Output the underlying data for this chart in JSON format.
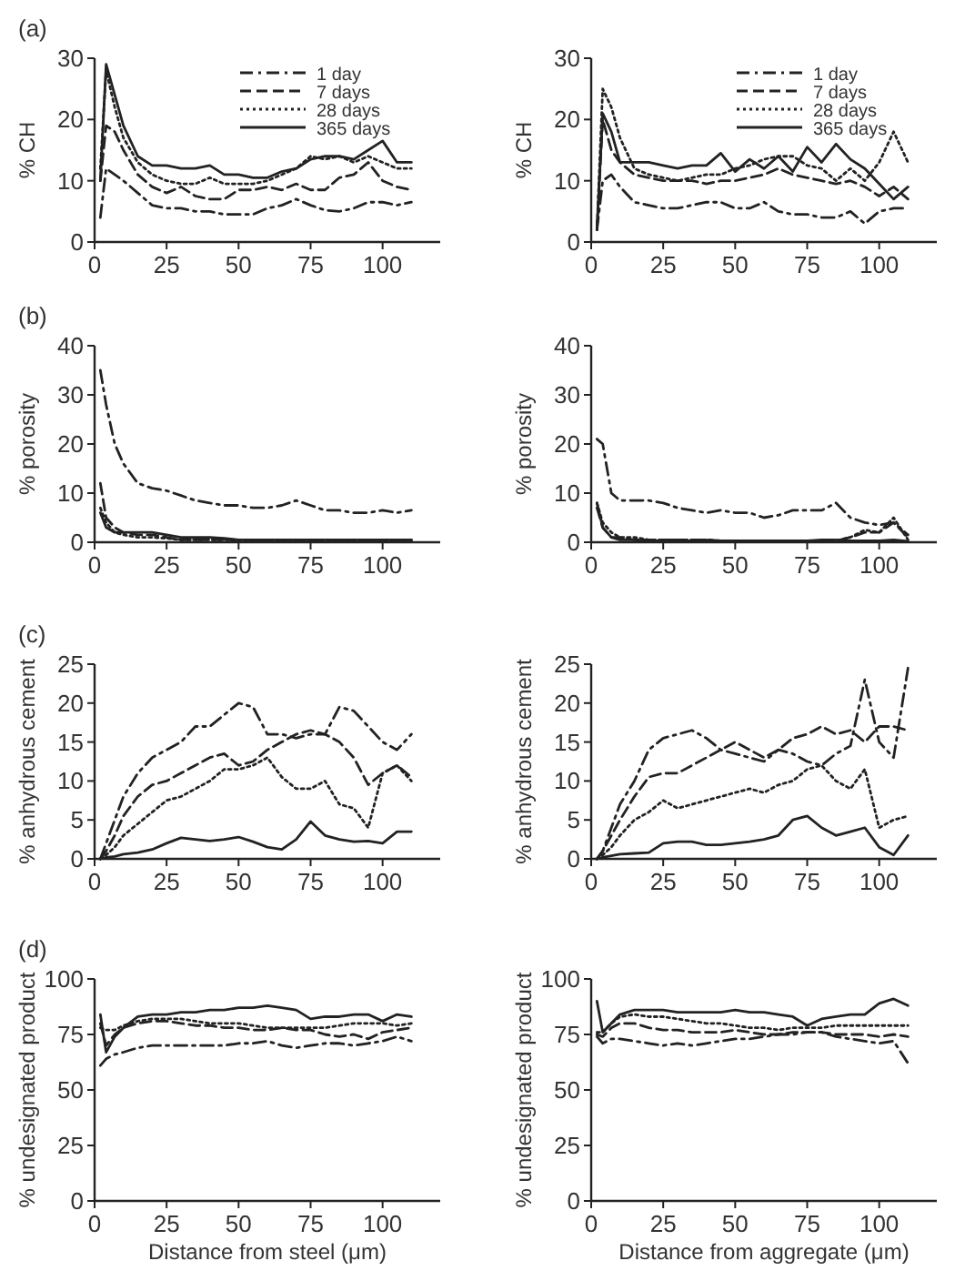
{
  "chart_data": [
    {
      "type": "line",
      "annotations": [
        "(a)"
      ],
      "ylabel": "% CH",
      "x": [
        2,
        4,
        7,
        10,
        15,
        20,
        25,
        30,
        35,
        40,
        45,
        50,
        55,
        60,
        65,
        70,
        75,
        80,
        85,
        90,
        95,
        100,
        105,
        110
      ],
      "xlim": [
        0,
        120
      ],
      "xticks": [
        0,
        25,
        50,
        75,
        100
      ],
      "ylim": [
        0,
        30
      ],
      "yticks": [
        0,
        10,
        20,
        30
      ],
      "legend": "top right",
      "series": [
        {
          "name": "1 day",
          "color": "#222222",
          "line_style": "dashdot",
          "values": [
            4,
            12,
            11,
            10,
            8,
            6,
            5.5,
            5.5,
            5,
            5,
            4.5,
            4.5,
            4.5,
            5.5,
            6,
            7,
            6,
            5.2,
            5,
            5.5,
            6.5,
            6.5,
            6,
            6.5
          ]
        },
        {
          "name": "7 days",
          "color": "#222222",
          "line_style": "dashed",
          "values": [
            10,
            19,
            18,
            15,
            11,
            9,
            8,
            9,
            7.5,
            7,
            7,
            8.5,
            8.5,
            9,
            8.5,
            9.5,
            8.5,
            8.5,
            10.5,
            11,
            13,
            10,
            9,
            8.5
          ]
        },
        {
          "name": "28 days",
          "color": "#222222",
          "line_style": "dotted",
          "values": [
            12,
            28,
            22,
            17,
            13,
            11,
            10,
            9.5,
            9.5,
            10.5,
            9.5,
            9.5,
            9.5,
            10,
            11,
            12,
            14,
            13.5,
            14,
            13,
            14,
            13,
            12,
            12
          ]
        },
        {
          "name": "365 days",
          "color": "#222222",
          "line_style": "solid",
          "values": [
            10,
            29,
            24,
            19,
            14,
            12.5,
            12.5,
            12,
            12,
            12.5,
            11,
            11,
            10.5,
            10.5,
            11.5,
            12,
            13.5,
            14,
            14,
            13.5,
            15,
            16.5,
            13,
            13
          ]
        }
      ]
    },
    {
      "type": "line",
      "ylabel": "% CH",
      "x": [
        2,
        4,
        7,
        10,
        15,
        20,
        25,
        30,
        35,
        40,
        45,
        50,
        55,
        60,
        65,
        70,
        75,
        80,
        85,
        90,
        95,
        100,
        105,
        110
      ],
      "xlim": [
        0,
        120
      ],
      "xticks": [
        0,
        25,
        50,
        75,
        100
      ],
      "ylim": [
        0,
        30
      ],
      "yticks": [
        0,
        10,
        20,
        30
      ],
      "legend": "top right",
      "series": [
        {
          "name": "1 day",
          "color": "#222222",
          "line_style": "dashdot",
          "values": [
            2,
            10,
            11,
            9,
            6.5,
            6,
            5.5,
            5.5,
            6,
            6.5,
            6.5,
            5.5,
            5.5,
            6.5,
            5,
            4.5,
            4.5,
            4,
            4,
            5,
            3,
            5,
            5.5,
            5.5
          ]
        },
        {
          "name": "7 days",
          "color": "#222222",
          "line_style": "dashed",
          "values": [
            2,
            20,
            15,
            13,
            11,
            10.5,
            10,
            10,
            10,
            9.5,
            10,
            10,
            10.5,
            11,
            12,
            11,
            10.5,
            10,
            9.5,
            10,
            9,
            7.5,
            9,
            7
          ]
        },
        {
          "name": "28 days",
          "color": "#222222",
          "line_style": "dotted",
          "values": [
            2,
            25,
            22,
            17,
            12,
            11,
            10.5,
            10,
            10.5,
            11,
            11,
            12,
            12.5,
            13.5,
            14,
            14,
            12.5,
            12,
            10,
            12,
            10,
            13,
            18,
            13
          ]
        },
        {
          "name": "365 days",
          "color": "#222222",
          "line_style": "solid",
          "values": [
            2,
            21,
            18,
            13,
            13,
            13,
            12.5,
            12,
            12.5,
            12.5,
            14.5,
            11.5,
            13.5,
            12,
            14,
            11.5,
            15.5,
            13,
            16,
            13.5,
            12,
            9.5,
            7,
            9
          ]
        }
      ]
    },
    {
      "type": "line",
      "annotations": [
        "(b)"
      ],
      "ylabel": "% porosity",
      "x": [
        2,
        4,
        7,
        10,
        15,
        20,
        25,
        30,
        35,
        40,
        45,
        50,
        55,
        60,
        65,
        70,
        75,
        80,
        85,
        90,
        95,
        100,
        105,
        110
      ],
      "xlim": [
        0,
        120
      ],
      "xticks": [
        0,
        25,
        50,
        75,
        100
      ],
      "ylim": [
        0,
        40
      ],
      "yticks": [
        0,
        10,
        20,
        30,
        40
      ],
      "series": [
        {
          "color": "#222222",
          "line_style": "dashdot",
          "values": [
            35,
            28,
            20,
            16,
            12,
            11,
            10.5,
            9.5,
            8.5,
            8,
            7.5,
            7.5,
            7,
            7,
            7.5,
            8.5,
            7.5,
            6.5,
            6.5,
            6,
            6,
            6.5,
            6,
            6.5
          ]
        },
        {
          "color": "#222222",
          "line_style": "dashed",
          "values": [
            12,
            5,
            3,
            2,
            1.5,
            1.5,
            1,
            0.5,
            0.5,
            0.5,
            0.5,
            0.5,
            0.5,
            0.5,
            0.5,
            0.5,
            0.5,
            0.5,
            0.5,
            0.5,
            0.5,
            0.5,
            0.5,
            0.5
          ]
        },
        {
          "color": "#222222",
          "line_style": "dotted",
          "values": [
            7,
            4,
            2,
            1.5,
            1,
            1,
            0.8,
            0.5,
            0.5,
            0.5,
            0.5,
            0.3,
            0.3,
            0.3,
            0.3,
            0.3,
            0.3,
            0.3,
            0.3,
            0.3,
            0.3,
            0.3,
            0.3,
            0.3
          ]
        },
        {
          "color": "#222222",
          "line_style": "solid",
          "values": [
            6,
            3,
            2,
            2,
            2,
            2,
            1.5,
            1,
            1,
            1,
            0.8,
            0.5,
            0.5,
            0.5,
            0.5,
            0.5,
            0.5,
            0.5,
            0.5,
            0.5,
            0.5,
            0.5,
            0.5,
            0.5
          ]
        }
      ]
    },
    {
      "type": "line",
      "ylabel": "% porosity",
      "x": [
        2,
        4,
        7,
        10,
        15,
        20,
        25,
        30,
        35,
        40,
        45,
        50,
        55,
        60,
        65,
        70,
        75,
        80,
        85,
        90,
        95,
        100,
        105,
        110
      ],
      "xlim": [
        0,
        120
      ],
      "xticks": [
        0,
        25,
        50,
        75,
        100
      ],
      "ylim": [
        0,
        40
      ],
      "yticks": [
        0,
        10,
        20,
        30,
        40
      ],
      "series": [
        {
          "color": "#222222",
          "line_style": "dashdot",
          "values": [
            21,
            20,
            10,
            8.5,
            8.5,
            8.5,
            8,
            7,
            6.5,
            6,
            6.5,
            6,
            6,
            5,
            5.5,
            6.5,
            6.5,
            6.5,
            8,
            5,
            4,
            3.5,
            4,
            1.5
          ]
        },
        {
          "color": "#222222",
          "line_style": "dashed",
          "values": [
            7,
            3,
            1,
            1,
            0.5,
            0.5,
            0.5,
            0.5,
            0.5,
            0.5,
            0.3,
            0.3,
            0.3,
            0.3,
            0.3,
            0.3,
            0.3,
            0.3,
            0.3,
            1,
            2,
            2,
            4,
            1
          ]
        },
        {
          "color": "#222222",
          "line_style": "dotted",
          "values": [
            8,
            4,
            2,
            1,
            1,
            0.5,
            0.5,
            0.5,
            0.5,
            0.5,
            0.3,
            0.3,
            0.3,
            0.3,
            0.3,
            0.3,
            0.3,
            0.3,
            0.3,
            1,
            2.5,
            2,
            5,
            0.5
          ]
        },
        {
          "color": "#222222",
          "line_style": "solid",
          "values": [
            8,
            3,
            1,
            0.5,
            0.5,
            0.3,
            0.3,
            0.3,
            0.3,
            0.3,
            0.3,
            0.3,
            0.3,
            0.3,
            0.3,
            0.3,
            0.3,
            0.5,
            0.5,
            0.3,
            0.3,
            0.3,
            0.5,
            0.2
          ]
        }
      ]
    },
    {
      "type": "line",
      "annotations": [
        "(c)"
      ],
      "ylabel": "% anhydrous cement",
      "x": [
        2,
        4,
        7,
        10,
        15,
        20,
        25,
        30,
        35,
        40,
        45,
        50,
        55,
        60,
        65,
        70,
        75,
        80,
        85,
        90,
        95,
        100,
        105,
        110
      ],
      "xlim": [
        0,
        120
      ],
      "xticks": [
        0,
        25,
        50,
        75,
        100
      ],
      "ylim": [
        0,
        25
      ],
      "yticks": [
        0,
        5,
        10,
        15,
        20,
        25
      ],
      "series": [
        {
          "color": "#222222",
          "line_style": "dashdot",
          "values": [
            0,
            2,
            5,
            8,
            11,
            13,
            14,
            15,
            17,
            17,
            18.5,
            20,
            19.5,
            16,
            16,
            15.5,
            16,
            16,
            19.5,
            19,
            17,
            15,
            14,
            16
          ]
        },
        {
          "color": "#222222",
          "line_style": "dashed",
          "values": [
            0,
            1,
            3,
            5.5,
            8,
            9.5,
            10,
            11,
            12,
            13,
            13.5,
            12,
            12.5,
            14,
            15,
            16,
            16.5,
            16,
            15,
            13,
            9.5,
            11,
            12,
            10.5
          ]
        },
        {
          "color": "#222222",
          "line_style": "dotted",
          "values": [
            0,
            0.5,
            1.5,
            3,
            4.5,
            6,
            7.5,
            8,
            9,
            10,
            11.5,
            11.5,
            12,
            13,
            10.5,
            9,
            9,
            10,
            7,
            6.5,
            4,
            11,
            12,
            10
          ]
        },
        {
          "color": "#222222",
          "line_style": "solid",
          "values": [
            0,
            0.2,
            0.3,
            0.6,
            0.8,
            1.2,
            2,
            2.7,
            2.5,
            2.3,
            2.5,
            2.8,
            2.2,
            1.5,
            1.2,
            2.5,
            4.8,
            3,
            2.5,
            2.2,
            2.3,
            2,
            3.5,
            3.5
          ]
        }
      ]
    },
    {
      "type": "line",
      "ylabel": "% anhydrous cement",
      "x": [
        2,
        4,
        7,
        10,
        15,
        20,
        25,
        30,
        35,
        40,
        45,
        50,
        55,
        60,
        65,
        70,
        75,
        80,
        85,
        90,
        95,
        100,
        105,
        110
      ],
      "xlim": [
        0,
        120
      ],
      "xticks": [
        0,
        25,
        50,
        75,
        100
      ],
      "ylim": [
        0,
        25
      ],
      "yticks": [
        0,
        5,
        10,
        15,
        20,
        25
      ],
      "series": [
        {
          "color": "#222222",
          "line_style": "dashdot",
          "values": [
            0,
            1,
            4,
            7,
            10,
            14,
            15.5,
            16,
            16.5,
            15.5,
            14,
            13.5,
            13,
            12.5,
            14,
            13.5,
            12.5,
            12,
            13.5,
            14.5,
            23,
            15,
            13,
            24.5
          ]
        },
        {
          "color": "#222222",
          "line_style": "dashed",
          "values": [
            0,
            1,
            3,
            5,
            8,
            10.5,
            11,
            11,
            12,
            13,
            14,
            15,
            14,
            13,
            14,
            15.5,
            16,
            17,
            16,
            16.5,
            15,
            17,
            17,
            16.5
          ]
        },
        {
          "color": "#222222",
          "line_style": "dotted",
          "values": [
            0,
            0.5,
            1.5,
            3,
            5,
            6,
            7.5,
            6.5,
            7,
            7.5,
            8,
            8.5,
            9,
            8.5,
            9.5,
            10,
            11.5,
            12,
            10,
            9,
            11.5,
            4,
            5,
            5.5
          ]
        },
        {
          "color": "#222222",
          "line_style": "solid",
          "values": [
            0,
            0.2,
            0.4,
            0.6,
            0.7,
            0.8,
            2,
            2.2,
            2.2,
            1.8,
            1.8,
            2,
            2.2,
            2.5,
            3,
            5,
            5.5,
            4,
            3,
            3.5,
            4,
            1.5,
            0.5,
            3
          ]
        }
      ]
    },
    {
      "type": "line",
      "annotations": [
        "(d)"
      ],
      "xlabel": "Distance from steel (μm)",
      "ylabel": "% undesignated product",
      "x": [
        2,
        4,
        7,
        10,
        15,
        20,
        25,
        30,
        35,
        40,
        45,
        50,
        55,
        60,
        65,
        70,
        75,
        80,
        85,
        90,
        95,
        100,
        105,
        110
      ],
      "xlim": [
        0,
        120
      ],
      "xticks": [
        0,
        25,
        50,
        75,
        100
      ],
      "ylim": [
        0,
        100
      ],
      "yticks": [
        0,
        25,
        50,
        75,
        100
      ],
      "series": [
        {
          "color": "#222222",
          "line_style": "dashdot",
          "values": [
            61,
            64,
            66,
            67,
            69,
            70,
            70,
            70,
            70,
            70,
            70,
            71,
            71,
            72,
            70,
            69,
            70,
            71,
            71,
            70,
            71,
            72,
            74,
            72
          ]
        },
        {
          "color": "#222222",
          "line_style": "dashed",
          "values": [
            80,
            70,
            75,
            78,
            80,
            81,
            81,
            80,
            79,
            79,
            78,
            78,
            77,
            77,
            78,
            77,
            77,
            75,
            74,
            75,
            73,
            76,
            77,
            78
          ]
        },
        {
          "color": "#222222",
          "line_style": "dotted",
          "values": [
            78,
            77,
            77,
            79,
            81,
            82,
            82,
            82,
            81,
            80,
            80,
            80,
            79,
            78,
            78,
            78,
            78,
            78,
            79,
            80,
            80,
            80,
            79,
            80
          ]
        },
        {
          "color": "#222222",
          "line_style": "solid",
          "values": [
            84,
            67,
            74,
            78,
            83,
            84,
            84,
            85,
            85,
            86,
            86,
            87,
            87,
            88,
            87,
            86,
            82,
            83,
            83,
            84,
            84,
            81,
            84,
            83
          ]
        }
      ]
    },
    {
      "type": "line",
      "xlabel": "Distance from aggregate (μm)",
      "ylabel": "% undesignated product",
      "x": [
        2,
        4,
        7,
        10,
        15,
        20,
        25,
        30,
        35,
        40,
        45,
        50,
        55,
        60,
        65,
        70,
        75,
        80,
        85,
        90,
        95,
        100,
        105,
        110
      ],
      "xlim": [
        0,
        120
      ],
      "xticks": [
        0,
        25,
        50,
        75,
        100
      ],
      "ylim": [
        0,
        100
      ],
      "yticks": [
        0,
        25,
        50,
        75,
        100
      ],
      "series": [
        {
          "color": "#222222",
          "line_style": "dashdot",
          "values": [
            74,
            71,
            73,
            73,
            72,
            71,
            70,
            71,
            70,
            71,
            72,
            73,
            73,
            74,
            75,
            75,
            76,
            76,
            74,
            73,
            72,
            71,
            72,
            62
          ]
        },
        {
          "color": "#222222",
          "line_style": "dashed",
          "values": [
            75,
            74,
            78,
            80,
            80,
            78,
            77,
            77,
            76,
            76,
            76,
            77,
            76,
            75,
            75,
            76,
            76,
            76,
            75,
            75,
            75,
            74,
            75,
            74
          ]
        },
        {
          "color": "#222222",
          "line_style": "dotted",
          "values": [
            76,
            76,
            80,
            83,
            84,
            83,
            83,
            82,
            81,
            80,
            80,
            79,
            78,
            78,
            77,
            78,
            78,
            78,
            79,
            79,
            79,
            79,
            79,
            79
          ]
        },
        {
          "color": "#222222",
          "line_style": "solid",
          "values": [
            90,
            76,
            80,
            84,
            86,
            86,
            86,
            85,
            85,
            85,
            85,
            86,
            85,
            85,
            84,
            83,
            79,
            82,
            83,
            84,
            84,
            89,
            91,
            88
          ]
        }
      ]
    }
  ]
}
